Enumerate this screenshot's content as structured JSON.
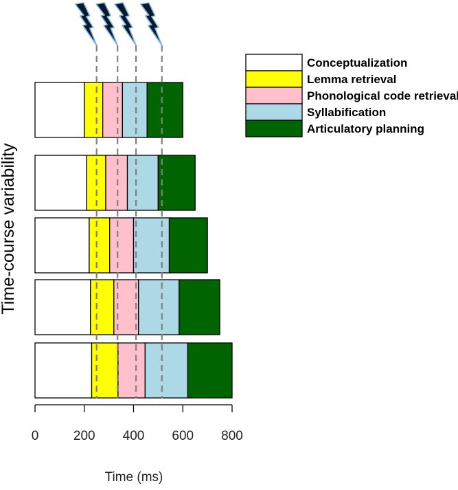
{
  "chart_data": {
    "type": "bar",
    "orientation": "horizontal-stacked",
    "xlabel": "Time (ms)",
    "ylabel": "Time-course variability",
    "xlim": [
      0,
      800
    ],
    "xticks": [
      0,
      200,
      400,
      600,
      800
    ],
    "grid": false,
    "legend_position": "top-right",
    "legend_entries": [
      {
        "name": "Conceptualization",
        "color": "#ffffff"
      },
      {
        "name": "Lemma retrieval",
        "color": "#ffff00"
      },
      {
        "name": "Phonological code retrieval",
        "color": "#ffc0cb"
      },
      {
        "name": "Syllabification",
        "color": "#add8e6"
      },
      {
        "name": "Articulatory planning",
        "color": "#006400"
      }
    ],
    "bars": [
      [
        200,
        275,
        355,
        455,
        600
      ],
      [
        210,
        287,
        375,
        500,
        650
      ],
      [
        220,
        303,
        400,
        545,
        700
      ],
      [
        225,
        320,
        420,
        585,
        750
      ],
      [
        230,
        337,
        447,
        620,
        800
      ]
    ],
    "reference_lines_ms": [
      250,
      335,
      410,
      515
    ],
    "reference_line_color": "#808080",
    "lightning_markers": 4,
    "lightning_color": "#0a1a2e"
  }
}
